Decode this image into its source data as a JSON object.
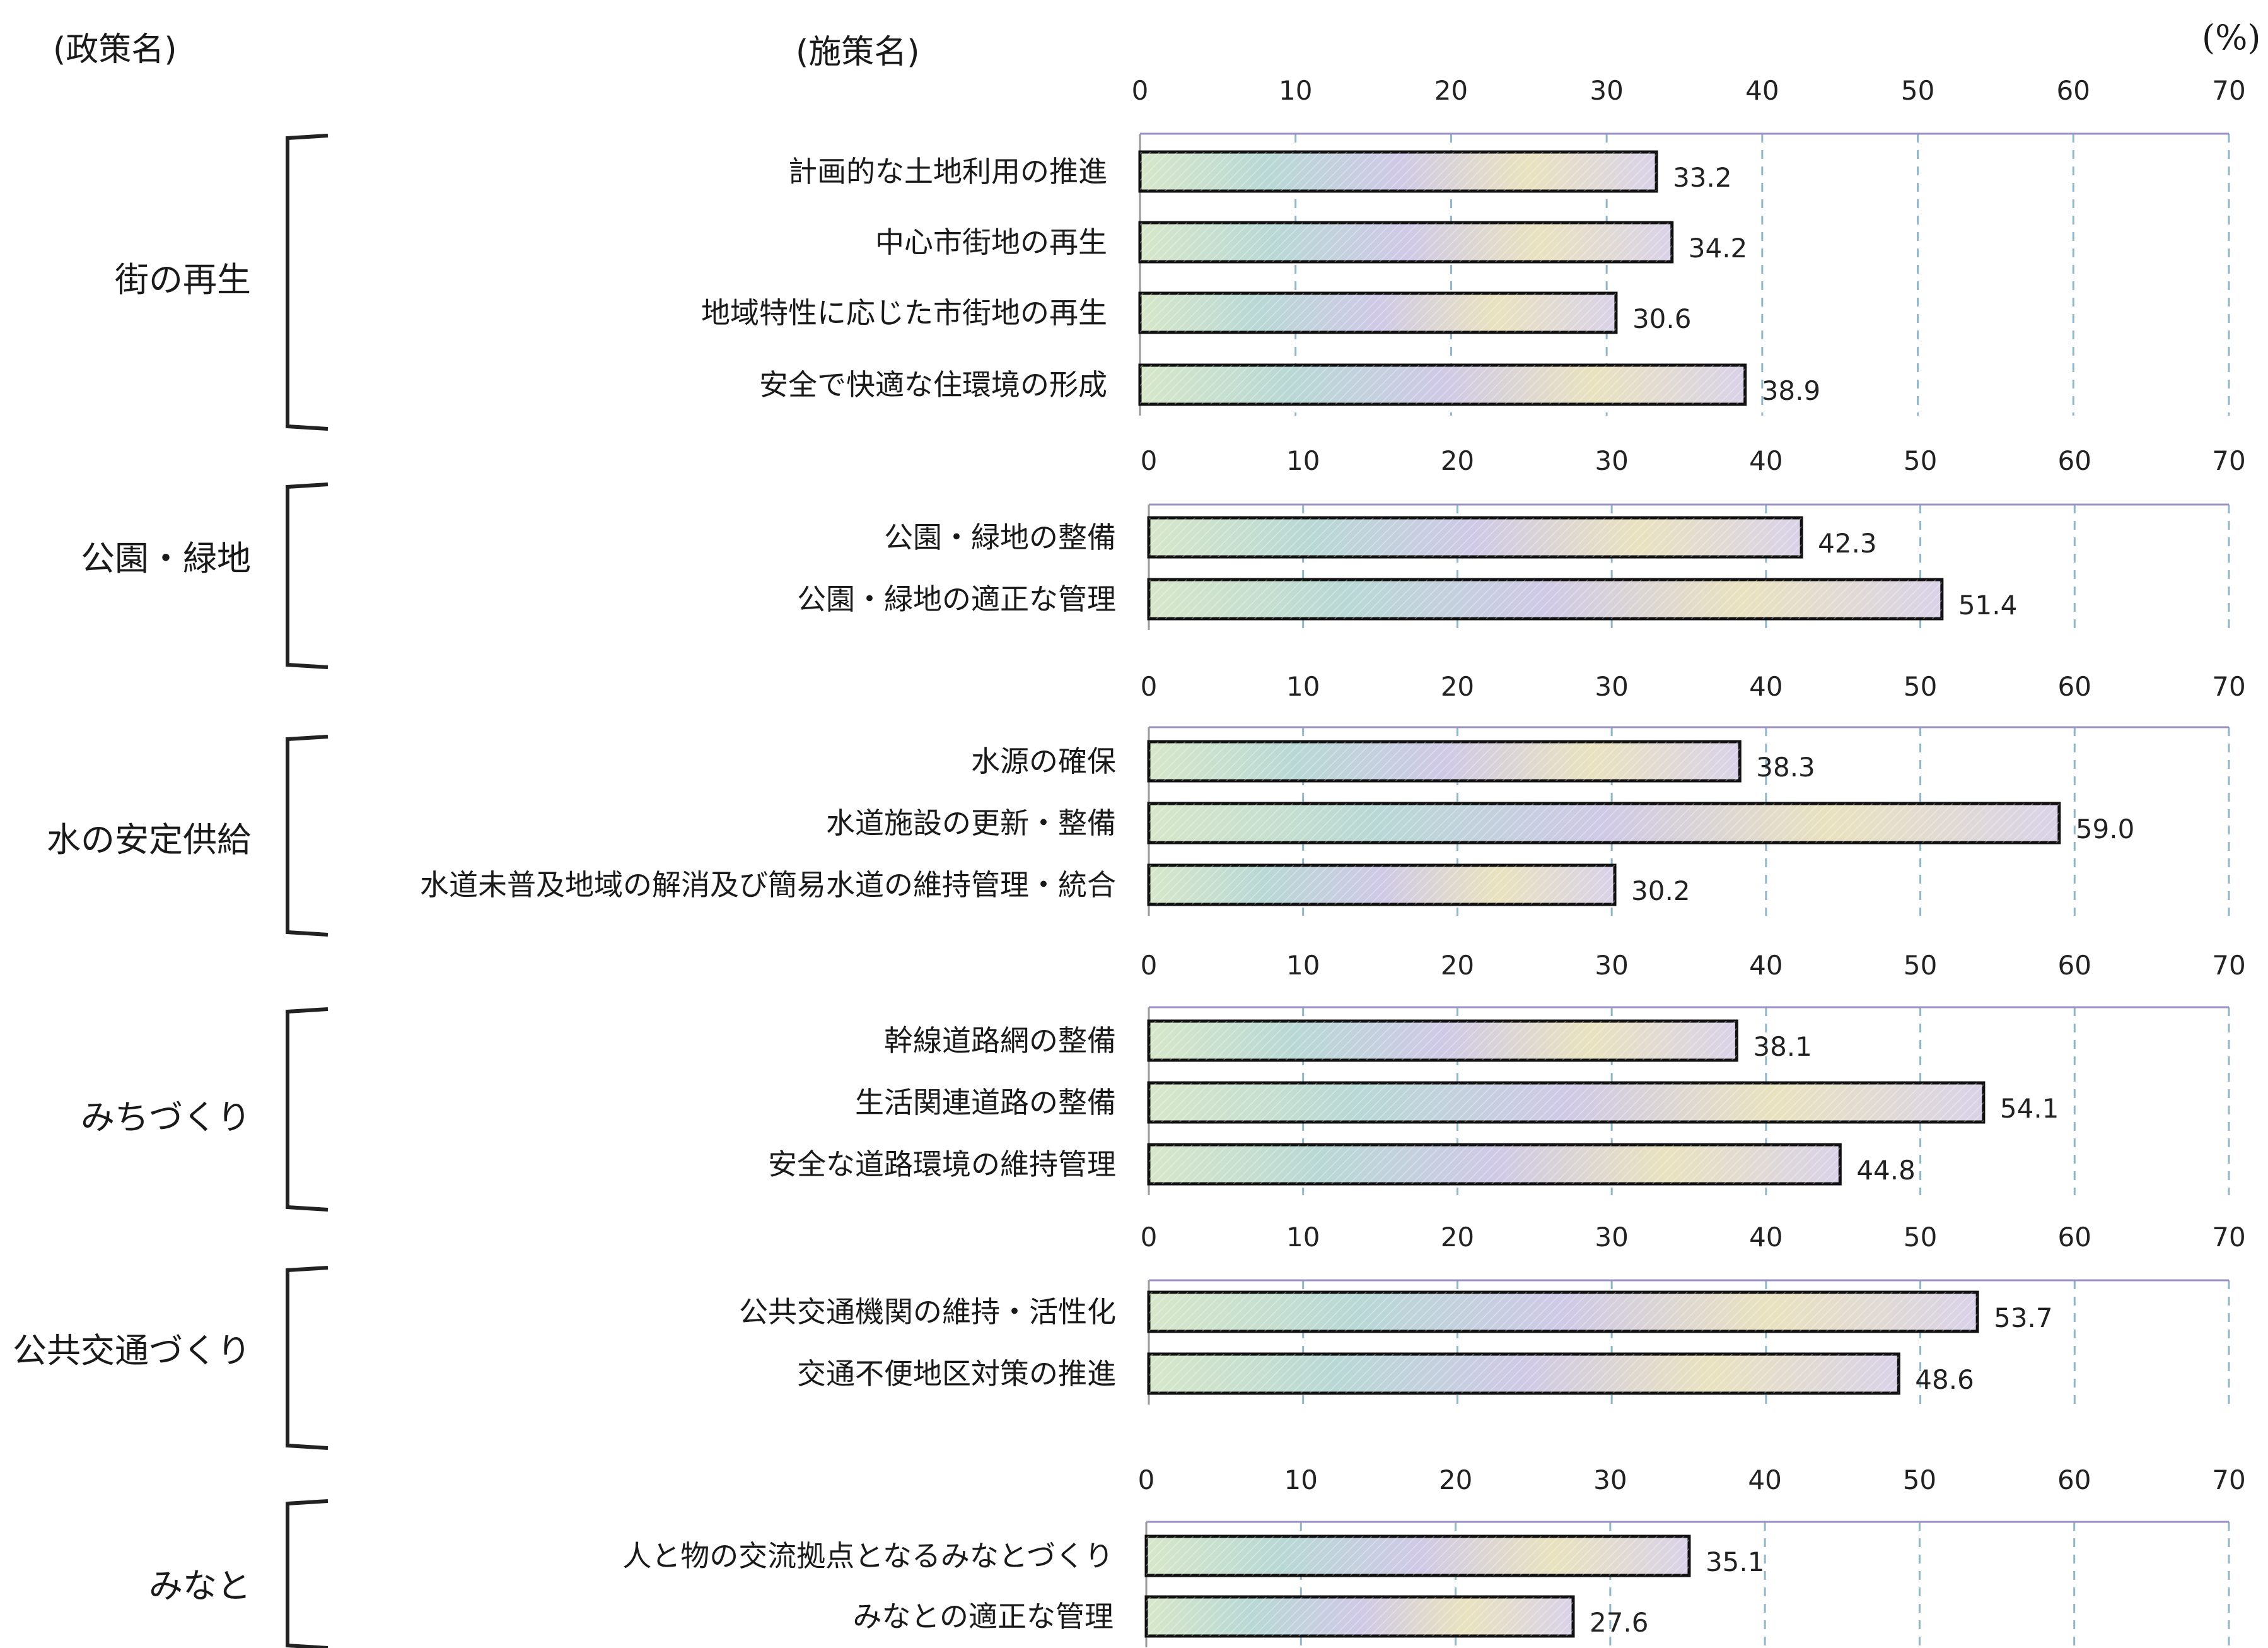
{
  "headers": {
    "policy": "(政策名)",
    "measure": "(施策名)",
    "unit": "(%)"
  },
  "colors": {
    "bar_stroke": "#111111",
    "axis_line": "#9b8fc4",
    "grid": "#8fb6c9",
    "bar_stops": [
      "#d7e7c9",
      "#b8d8d5",
      "#cfc9e6",
      "#e9e2bf",
      "#d9d2e8"
    ]
  },
  "chart_data": {
    "type": "bar",
    "orientation": "horizontal",
    "xlim": [
      0,
      70
    ],
    "ticks": [
      0,
      10,
      20,
      30,
      40,
      50,
      60,
      70
    ],
    "unit": "(%)",
    "grid": true,
    "groups": [
      {
        "policy": "街の再生",
        "items": [
          {
            "label": "計画的な土地利用の推進",
            "value": 33.2
          },
          {
            "label": "中心市街地の再生",
            "value": 34.2
          },
          {
            "label": "地域特性に応じた市街地の再生",
            "value": 30.6
          },
          {
            "label": "安全で快適な住環境の形成",
            "value": 38.9
          }
        ]
      },
      {
        "policy": "公園・緑地",
        "items": [
          {
            "label": "公園・緑地の整備",
            "value": 42.3
          },
          {
            "label": "公園・緑地の適正な管理",
            "value": 51.4
          }
        ]
      },
      {
        "policy": "水の安定供給",
        "items": [
          {
            "label": "水源の確保",
            "value": 38.3
          },
          {
            "label": "水道施設の更新・整備",
            "value": 59.0
          },
          {
            "label": "水道未普及地域の解消及び簡易水道の維持管理・統合",
            "value": 30.2
          }
        ]
      },
      {
        "policy": "みちづくり",
        "items": [
          {
            "label": "幹線道路網の整備",
            "value": 38.1
          },
          {
            "label": "生活関連道路の整備",
            "value": 54.1
          },
          {
            "label": "安全な道路環境の維持管理",
            "value": 44.8
          }
        ]
      },
      {
        "policy": "公共交通づくり",
        "items": [
          {
            "label": "公共交通機関の維持・活性化",
            "value": 53.7
          },
          {
            "label": "交通不便地区対策の推進",
            "value": 48.6
          }
        ]
      },
      {
        "policy": "みなと",
        "items": [
          {
            "label": "人と物の交流拠点となるみなとづくり",
            "value": 35.1
          },
          {
            "label": "みなとの適正な管理",
            "value": 27.6
          }
        ]
      }
    ]
  }
}
